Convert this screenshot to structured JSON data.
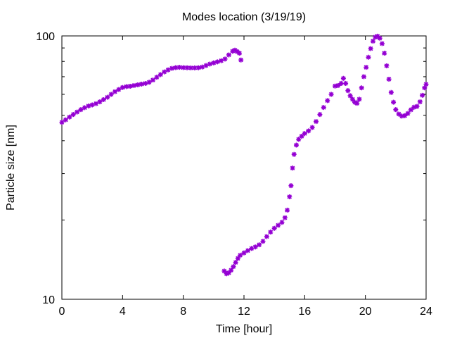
{
  "chart_data": {
    "type": "scatter",
    "title": "Modes location (3/19/19)",
    "xlabel": "Time [hour]",
    "ylabel": "Particle size [nm]",
    "xlim": [
      0,
      24
    ],
    "ylim": [
      10,
      100
    ],
    "yscale": "log",
    "xticks": [
      "0",
      "4",
      "8",
      "12",
      "16",
      "20",
      "24"
    ],
    "yticks": [
      "10",
      "100"
    ],
    "marker": "asterisk",
    "color": "#9400d3",
    "grid": false,
    "series": [
      {
        "name": "",
        "points": [
          [
            0.0,
            47.0
          ],
          [
            0.25,
            48.0
          ],
          [
            0.5,
            49.2
          ],
          [
            0.75,
            50.3
          ],
          [
            1.0,
            51.4
          ],
          [
            1.25,
            52.5
          ],
          [
            1.5,
            53.4
          ],
          [
            1.75,
            54.2
          ],
          [
            2.0,
            54.7
          ],
          [
            2.25,
            55.3
          ],
          [
            2.5,
            56.2
          ],
          [
            2.75,
            57.3
          ],
          [
            3.0,
            58.5
          ],
          [
            3.25,
            60.0
          ],
          [
            3.5,
            61.4
          ],
          [
            3.75,
            62.6
          ],
          [
            4.0,
            63.7
          ],
          [
            4.25,
            64.2
          ],
          [
            4.5,
            64.4
          ],
          [
            4.75,
            64.8
          ],
          [
            5.0,
            65.2
          ],
          [
            5.25,
            65.6
          ],
          [
            5.5,
            66.0
          ],
          [
            5.75,
            66.7
          ],
          [
            6.0,
            68.0
          ],
          [
            6.25,
            69.7
          ],
          [
            6.5,
            71.3
          ],
          [
            6.75,
            73.0
          ],
          [
            7.0,
            74.3
          ],
          [
            7.25,
            75.3
          ],
          [
            7.5,
            75.8
          ],
          [
            7.75,
            76.0
          ],
          [
            8.0,
            75.8
          ],
          [
            8.25,
            75.7
          ],
          [
            8.5,
            75.6
          ],
          [
            8.75,
            75.6
          ],
          [
            9.0,
            75.7
          ],
          [
            9.25,
            76.2
          ],
          [
            9.5,
            77.2
          ],
          [
            9.75,
            78.2
          ],
          [
            10.0,
            79.0
          ],
          [
            10.25,
            79.7
          ],
          [
            10.5,
            80.5
          ],
          [
            10.75,
            81.7
          ],
          [
            11.0,
            84.7
          ],
          [
            11.25,
            87.5
          ],
          [
            11.4,
            88.3
          ],
          [
            11.55,
            87.2
          ],
          [
            11.7,
            86.0
          ],
          [
            11.8,
            81.0
          ],
          [
            10.7,
            12.8
          ],
          [
            10.85,
            12.5
          ],
          [
            11.0,
            12.6
          ],
          [
            11.15,
            12.9
          ],
          [
            11.3,
            13.3
          ],
          [
            11.45,
            13.8
          ],
          [
            11.6,
            14.3
          ],
          [
            11.75,
            14.7
          ],
          [
            12.0,
            15.0
          ],
          [
            12.25,
            15.3
          ],
          [
            12.5,
            15.6
          ],
          [
            12.75,
            15.8
          ],
          [
            13.0,
            16.1
          ],
          [
            13.25,
            16.6
          ],
          [
            13.5,
            17.3
          ],
          [
            13.75,
            18.0
          ],
          [
            14.0,
            18.6
          ],
          [
            14.25,
            19.1
          ],
          [
            14.5,
            19.6
          ],
          [
            14.7,
            20.4
          ],
          [
            14.85,
            21.8
          ],
          [
            15.0,
            24.5
          ],
          [
            15.1,
            27.0
          ],
          [
            15.2,
            31.5
          ],
          [
            15.3,
            35.5
          ],
          [
            15.45,
            38.5
          ],
          [
            15.6,
            40.5
          ],
          [
            15.8,
            41.6
          ],
          [
            16.0,
            42.6
          ],
          [
            16.25,
            43.6
          ],
          [
            16.5,
            44.9
          ],
          [
            16.75,
            47.3
          ],
          [
            17.0,
            50.3
          ],
          [
            17.25,
            53.5
          ],
          [
            17.5,
            56.8
          ],
          [
            17.75,
            60.0
          ],
          [
            18.0,
            64.5
          ],
          [
            18.2,
            64.8
          ],
          [
            18.4,
            66.0
          ],
          [
            18.55,
            69.0
          ],
          [
            18.7,
            66.0
          ],
          [
            18.85,
            62.0
          ],
          [
            19.0,
            59.3
          ],
          [
            19.15,
            57.5
          ],
          [
            19.3,
            56.0
          ],
          [
            19.45,
            55.5
          ],
          [
            19.6,
            57.5
          ],
          [
            19.75,
            63.5
          ],
          [
            19.9,
            70.0
          ],
          [
            20.05,
            76.0
          ],
          [
            20.2,
            83.0
          ],
          [
            20.35,
            89.5
          ],
          [
            20.5,
            95.5
          ],
          [
            20.65,
            99.0
          ],
          [
            20.8,
            99.8
          ],
          [
            20.95,
            98.0
          ],
          [
            21.1,
            93.5
          ],
          [
            21.25,
            86.0
          ],
          [
            21.4,
            77.0
          ],
          [
            21.55,
            68.5
          ],
          [
            21.7,
            61.0
          ],
          [
            21.85,
            56.0
          ],
          [
            22.0,
            52.5
          ],
          [
            22.2,
            50.5
          ],
          [
            22.4,
            49.6
          ],
          [
            22.6,
            49.8
          ],
          [
            22.8,
            50.8
          ],
          [
            23.0,
            52.4
          ],
          [
            23.2,
            53.6
          ],
          [
            23.4,
            54.0
          ],
          [
            23.6,
            56.2
          ],
          [
            23.75,
            59.5
          ],
          [
            23.9,
            63.5
          ],
          [
            24.0,
            65.5
          ]
        ]
      }
    ]
  }
}
